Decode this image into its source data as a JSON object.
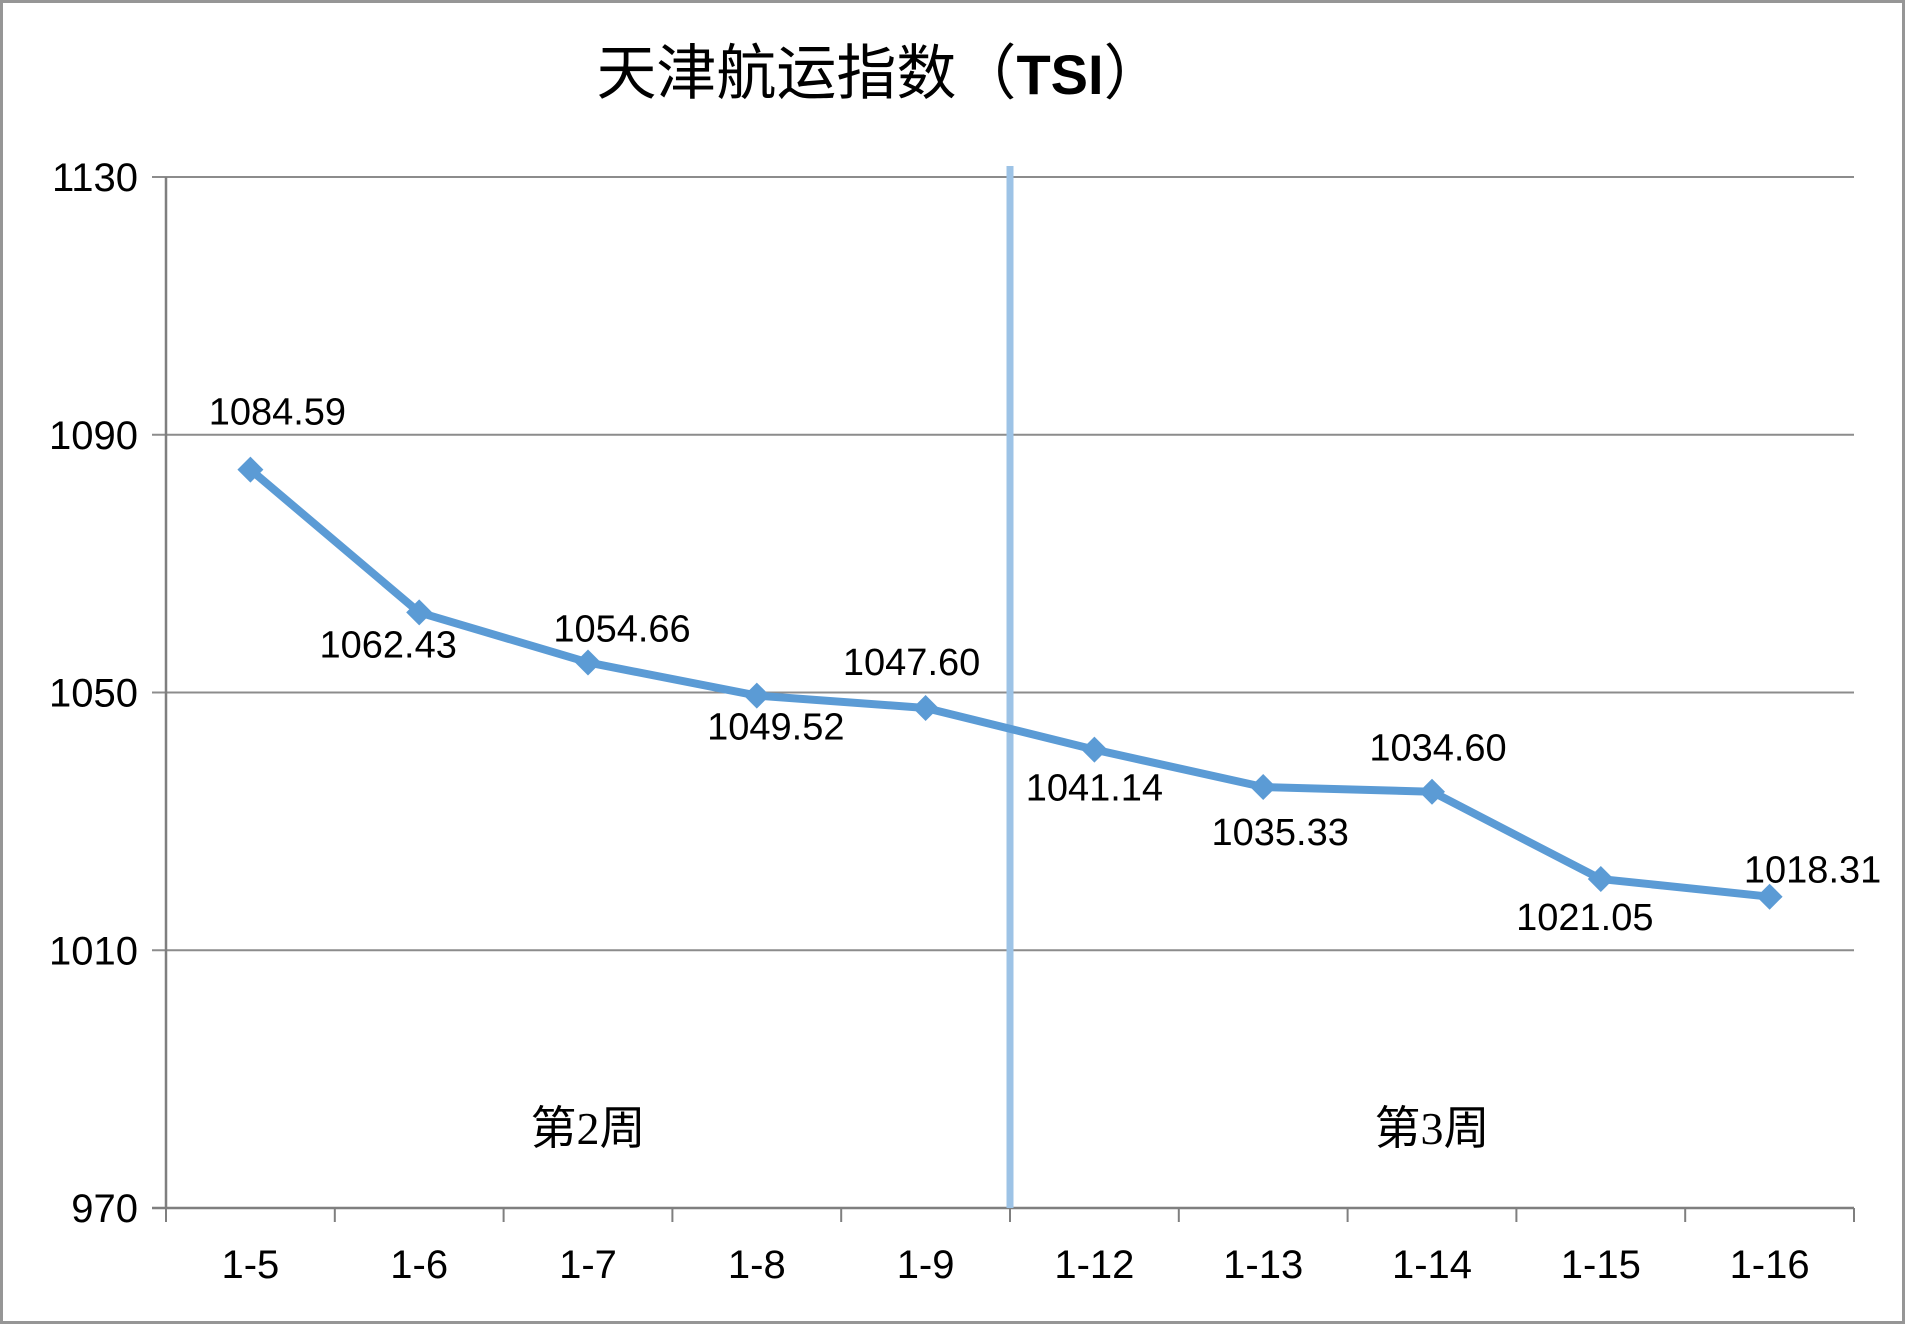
{
  "chart_data": {
    "type": "line",
    "title": {
      "prefix": "天津航运指数（",
      "emphasis": "TSI",
      "suffix": "）",
      "full": "天津航运指数（TSI）"
    },
    "categories": [
      "1-5",
      "1-6",
      "1-7",
      "1-8",
      "1-9",
      "1-12",
      "1-13",
      "1-14",
      "1-15",
      "1-16"
    ],
    "series": [
      {
        "name": "TSI",
        "values": [
          1084.59,
          1062.43,
          1054.66,
          1049.52,
          1047.6,
          1041.14,
          1035.33,
          1034.6,
          1021.05,
          1018.31
        ]
      }
    ],
    "data_labels": [
      "1084.59",
      "1062.43",
      "1054.66",
      "1049.52",
      "1047.60",
      "1041.14",
      "1035.33",
      "1034.60",
      "1021.05",
      "1018.31"
    ],
    "label_positions": [
      "above",
      "below",
      "above",
      "below",
      "above",
      "below",
      "below",
      "above",
      "below",
      "above"
    ],
    "xlabel": "",
    "ylabel": "",
    "ylim": [
      970,
      1130
    ],
    "y_ticks": [
      970,
      1010,
      1050,
      1090,
      1130
    ],
    "grid": "horizontal",
    "legend": "none",
    "divider": {
      "after_category": "1-9",
      "boundary_index": 5,
      "color": "#9DC3E6"
    },
    "annotations": [
      {
        "text": "第2周",
        "region": "left-half"
      },
      {
        "text": "第3周",
        "region": "right-half"
      }
    ],
    "colors": {
      "series": "#5B9BD5",
      "gridline": "#8C8C8C",
      "axis": "#7F7F7F",
      "text": "#000000",
      "frame": "#969696"
    }
  }
}
